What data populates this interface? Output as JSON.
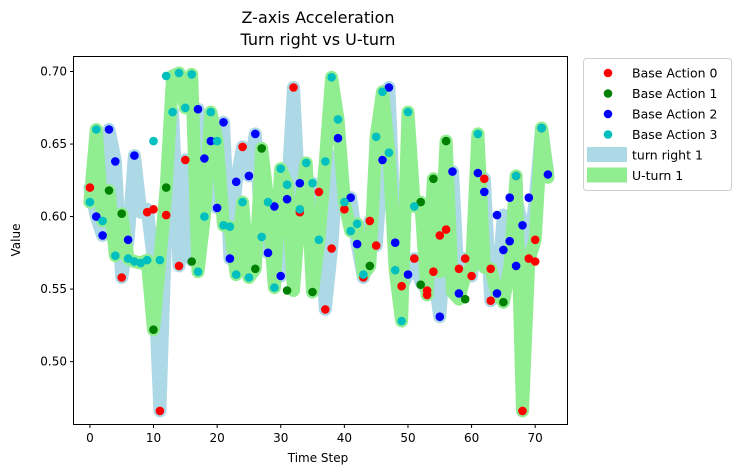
{
  "chart_data": {
    "type": "scatter",
    "title": "Z-axis Acceleration",
    "subtitle": "Turn right vs U-turn",
    "xlabel": "Time Step",
    "ylabel": "Value",
    "xlim": [
      -2.5,
      75.0
    ],
    "ylim": [
      0.457,
      0.71
    ],
    "xticks": [
      0,
      10,
      20,
      30,
      40,
      50,
      60,
      70
    ],
    "yticks": [
      0.5,
      0.55,
      0.6,
      0.65,
      0.7
    ],
    "xtick_labels": [
      "0",
      "10",
      "20",
      "30",
      "40",
      "50",
      "60",
      "70"
    ],
    "ytick_labels": [
      "0.50",
      "0.55",
      "0.60",
      "0.65",
      "0.70"
    ],
    "grid": false,
    "legend_position": "outside upper right",
    "bands": [
      {
        "name": "turn right 1",
        "color": "#add8e6",
        "x": [
          0,
          1,
          2,
          3,
          4,
          5,
          6,
          7,
          8,
          9,
          10,
          11,
          12,
          13,
          14,
          15,
          16,
          17,
          18,
          19,
          20,
          21,
          22,
          23,
          24,
          25,
          26,
          27,
          28,
          29,
          30,
          31,
          32,
          33,
          34,
          35,
          36,
          37,
          38,
          39,
          40,
          41,
          42,
          43,
          44,
          45,
          46,
          47,
          48,
          49,
          50,
          51,
          52,
          53,
          54,
          55,
          56,
          57,
          58,
          59,
          60,
          61,
          62,
          63,
          64,
          65,
          66,
          67,
          68,
          69,
          70,
          71,
          72
        ],
        "y": [
          0.62,
          0.6,
          0.587,
          0.66,
          0.638,
          0.558,
          0.584,
          0.642,
          0.603,
          0.605,
          0.57,
          0.466,
          0.601,
          0.672,
          0.566,
          0.639,
          0.57,
          0.674,
          0.64,
          0.652,
          0.606,
          0.665,
          0.571,
          0.624,
          0.648,
          0.628,
          0.657,
          0.583,
          0.575,
          0.607,
          0.559,
          0.612,
          0.689,
          0.603,
          0.623,
          0.623,
          0.617,
          0.536,
          0.578,
          0.643,
          0.605,
          0.613,
          0.581,
          0.558,
          0.597,
          0.58,
          0.639,
          0.689,
          0.582,
          0.552,
          0.56,
          0.571,
          0.555,
          0.549,
          0.562,
          0.531,
          0.591,
          0.631,
          0.547,
          0.571,
          0.559,
          0.63,
          0.626,
          0.542,
          0.547,
          0.601,
          0.583,
          0.612,
          0.594,
          0.571,
          0.612,
          0.661,
          0.629
        ]
      },
      {
        "name": "U-turn 1",
        "color": "#90ee90",
        "x": [
          0,
          1,
          2,
          3,
          4,
          5,
          6,
          7,
          8,
          9,
          10,
          11,
          12,
          13,
          14,
          15,
          16,
          17,
          18,
          19,
          20,
          21,
          22,
          23,
          24,
          25,
          26,
          27,
          28,
          29,
          30,
          31,
          32,
          33,
          34,
          35,
          36,
          37,
          38,
          39,
          40,
          41,
          42,
          43,
          44,
          45,
          46,
          47,
          48,
          49,
          50,
          51,
          52,
          53,
          54,
          55,
          56,
          57,
          58,
          59,
          60,
          61,
          62,
          63,
          64,
          65,
          66,
          67,
          68,
          69,
          70,
          71,
          72
        ],
        "y": [
          0.61,
          0.66,
          0.597,
          0.618,
          0.573,
          0.602,
          0.571,
          0.569,
          0.568,
          0.57,
          0.522,
          0.57,
          0.62,
          0.697,
          0.699,
          0.675,
          0.698,
          0.562,
          0.6,
          0.672,
          0.652,
          0.594,
          0.593,
          0.56,
          0.61,
          0.558,
          0.564,
          0.647,
          0.61,
          0.551,
          0.633,
          0.622,
          0.549,
          0.605,
          0.637,
          0.548,
          0.584,
          0.638,
          0.696,
          0.667,
          0.61,
          0.59,
          0.595,
          0.56,
          0.566,
          0.655,
          0.686,
          0.644,
          0.563,
          0.528,
          0.672,
          0.607,
          0.61,
          0.546,
          0.626,
          0.562,
          0.652,
          0.548,
          0.543,
          0.56,
          0.565,
          0.657,
          0.565,
          0.564,
          0.547,
          0.541,
          0.565,
          0.628,
          0.466,
          0.57,
          0.584,
          0.661,
          0.627
        ]
      }
    ],
    "series": [
      {
        "name": "Base Action 0",
        "color": "#ff0000",
        "points": [
          [
            0,
            0.62
          ],
          [
            5,
            0.558
          ],
          [
            9,
            0.603
          ],
          [
            10,
            0.605
          ],
          [
            11,
            0.466
          ],
          [
            12,
            0.601
          ],
          [
            14,
            0.566
          ],
          [
            15,
            0.639
          ],
          [
            24,
            0.648
          ],
          [
            33,
            0.603
          ],
          [
            36,
            0.617
          ],
          [
            37,
            0.536
          ],
          [
            38,
            0.578
          ],
          [
            40,
            0.605
          ],
          [
            43,
            0.558
          ],
          [
            44,
            0.597
          ],
          [
            45,
            0.58
          ],
          [
            49,
            0.552
          ],
          [
            51,
            0.571
          ],
          [
            53,
            0.549
          ],
          [
            53,
            0.546
          ],
          [
            54,
            0.562
          ],
          [
            55,
            0.587
          ],
          [
            56,
            0.591
          ],
          [
            58,
            0.564
          ],
          [
            59,
            0.571
          ],
          [
            60,
            0.559
          ],
          [
            62,
            0.626
          ],
          [
            63,
            0.542
          ],
          [
            63,
            0.564
          ],
          [
            67,
            0.628
          ],
          [
            68,
            0.466
          ],
          [
            69,
            0.571
          ],
          [
            70,
            0.569
          ],
          [
            70,
            0.584
          ],
          [
            32,
            0.689
          ]
        ]
      },
      {
        "name": "Base Action 1",
        "color": "#008000",
        "points": [
          [
            3,
            0.618
          ],
          [
            5,
            0.602
          ],
          [
            10,
            0.522
          ],
          [
            12,
            0.62
          ],
          [
            16,
            0.569
          ],
          [
            26,
            0.564
          ],
          [
            27,
            0.647
          ],
          [
            31,
            0.549
          ],
          [
            35,
            0.548
          ],
          [
            44,
            0.566
          ],
          [
            52,
            0.61
          ],
          [
            52,
            0.553
          ],
          [
            54,
            0.626
          ],
          [
            56,
            0.652
          ],
          [
            59,
            0.543
          ],
          [
            65,
            0.541
          ]
        ]
      },
      {
        "name": "Base Action 2",
        "color": "#0000ff",
        "points": [
          [
            1,
            0.6
          ],
          [
            2,
            0.587
          ],
          [
            3,
            0.66
          ],
          [
            4,
            0.638
          ],
          [
            6,
            0.584
          ],
          [
            7,
            0.642
          ],
          [
            17,
            0.674
          ],
          [
            18,
            0.64
          ],
          [
            19,
            0.652
          ],
          [
            20,
            0.606
          ],
          [
            21,
            0.665
          ],
          [
            22,
            0.571
          ],
          [
            23,
            0.624
          ],
          [
            25,
            0.628
          ],
          [
            26,
            0.657
          ],
          [
            28,
            0.575
          ],
          [
            29,
            0.607
          ],
          [
            30,
            0.559
          ],
          [
            31,
            0.612
          ],
          [
            33,
            0.623
          ],
          [
            39,
            0.654
          ],
          [
            41,
            0.613
          ],
          [
            42,
            0.581
          ],
          [
            46,
            0.639
          ],
          [
            47,
            0.689
          ],
          [
            48,
            0.582
          ],
          [
            50,
            0.56
          ],
          [
            55,
            0.531
          ],
          [
            57,
            0.631
          ],
          [
            58,
            0.547
          ],
          [
            61,
            0.63
          ],
          [
            62,
            0.617
          ],
          [
            64,
            0.547
          ],
          [
            64,
            0.601
          ],
          [
            65,
            0.577
          ],
          [
            66,
            0.583
          ],
          [
            66,
            0.613
          ],
          [
            67,
            0.566
          ],
          [
            68,
            0.594
          ],
          [
            69,
            0.613
          ],
          [
            71,
            0.661
          ],
          [
            72,
            0.629
          ]
        ]
      },
      {
        "name": "Base Action 3",
        "color": "#00bfbf",
        "points": [
          [
            0,
            0.61
          ],
          [
            1,
            0.66
          ],
          [
            2,
            0.597
          ],
          [
            4,
            0.573
          ],
          [
            6,
            0.571
          ],
          [
            7,
            0.569
          ],
          [
            8,
            0.568
          ],
          [
            9,
            0.57
          ],
          [
            10,
            0.652
          ],
          [
            11,
            0.57
          ],
          [
            12,
            0.697
          ],
          [
            13,
            0.672
          ],
          [
            14,
            0.699
          ],
          [
            15,
            0.675
          ],
          [
            16,
            0.698
          ],
          [
            17,
            0.562
          ],
          [
            18,
            0.6
          ],
          [
            19,
            0.672
          ],
          [
            20,
            0.652
          ],
          [
            21,
            0.594
          ],
          [
            22,
            0.593
          ],
          [
            23,
            0.56
          ],
          [
            24,
            0.61
          ],
          [
            25,
            0.558
          ],
          [
            27,
            0.586
          ],
          [
            28,
            0.61
          ],
          [
            29,
            0.551
          ],
          [
            30,
            0.633
          ],
          [
            31,
            0.622
          ],
          [
            33,
            0.605
          ],
          [
            34,
            0.637
          ],
          [
            35,
            0.623
          ],
          [
            36,
            0.584
          ],
          [
            37,
            0.638
          ],
          [
            38,
            0.696
          ],
          [
            39,
            0.667
          ],
          [
            40,
            0.61
          ],
          [
            41,
            0.59
          ],
          [
            42,
            0.595
          ],
          [
            43,
            0.56
          ],
          [
            45,
            0.655
          ],
          [
            46,
            0.686
          ],
          [
            47,
            0.644
          ],
          [
            48,
            0.563
          ],
          [
            49,
            0.528
          ],
          [
            50,
            0.672
          ],
          [
            51,
            0.607
          ],
          [
            61,
            0.657
          ],
          [
            67,
            0.628
          ],
          [
            71,
            0.661
          ]
        ]
      }
    ],
    "legend": [
      {
        "label": "Base Action 0",
        "kind": "marker",
        "color": "#ff0000"
      },
      {
        "label": "Base Action 1",
        "kind": "marker",
        "color": "#008000"
      },
      {
        "label": "Base Action 2",
        "kind": "marker",
        "color": "#0000ff"
      },
      {
        "label": "Base Action 3",
        "kind": "marker",
        "color": "#00bfbf"
      },
      {
        "label": "turn right 1",
        "kind": "patch",
        "color": "#add8e6"
      },
      {
        "label": "U-turn 1",
        "kind": "patch",
        "color": "#90ee90"
      }
    ]
  }
}
